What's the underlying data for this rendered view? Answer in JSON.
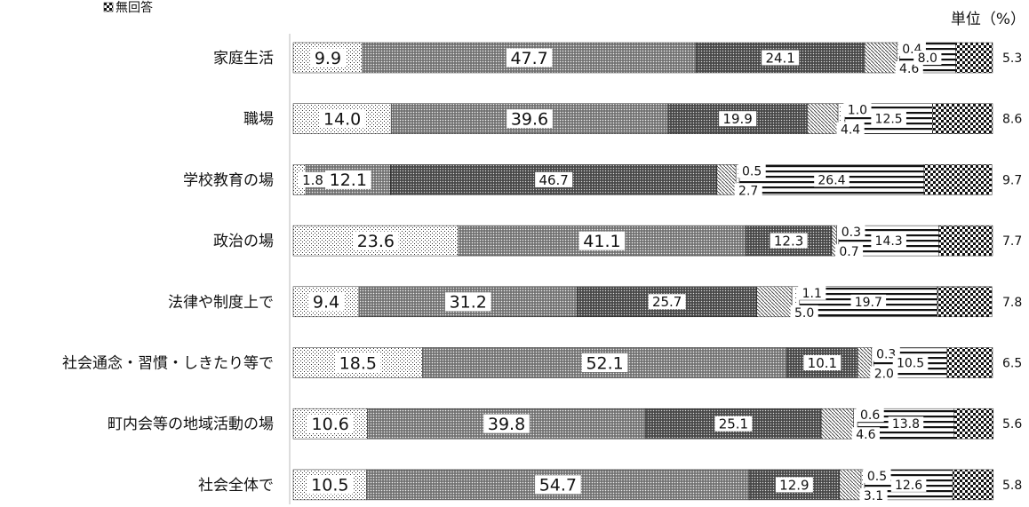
{
  "legend": {
    "no_answer": "無回答"
  },
  "unit": "単位（%）",
  "chart_data": {
    "type": "bar",
    "orientation": "horizontal",
    "stacked": "100%",
    "categories": [
      "家庭生活",
      "職場",
      "学校教育の場",
      "政治の場",
      "法律や制度上で",
      "社会通念・習慣・しきたり等で",
      "町内会等の地域活動の場",
      "社会全体で"
    ],
    "series": [
      {
        "values": [
          9.9,
          14.0,
          1.8,
          23.6,
          9.4,
          18.5,
          10.6,
          10.5
        ]
      },
      {
        "values": [
          47.7,
          39.6,
          12.1,
          41.1,
          31.2,
          52.1,
          39.8,
          54.7
        ]
      },
      {
        "values": [
          24.1,
          19.9,
          46.7,
          12.3,
          25.7,
          10.1,
          25.1,
          12.9
        ]
      },
      {
        "values": [
          4.6,
          4.4,
          2.7,
          0.7,
          5.0,
          2.0,
          4.6,
          3.1
        ]
      },
      {
        "values": [
          0.4,
          1.0,
          0.5,
          0.3,
          1.1,
          0.3,
          0.6,
          0.5
        ]
      },
      {
        "values": [
          8.0,
          12.5,
          26.4,
          14.3,
          19.7,
          10.5,
          13.8,
          12.6
        ]
      },
      {
        "name": "無回答",
        "values": [
          5.3,
          8.6,
          9.7,
          7.7,
          7.8,
          6.5,
          5.6,
          5.8
        ]
      }
    ],
    "xlim": [
      0,
      100
    ],
    "legend_position": "top-left"
  }
}
